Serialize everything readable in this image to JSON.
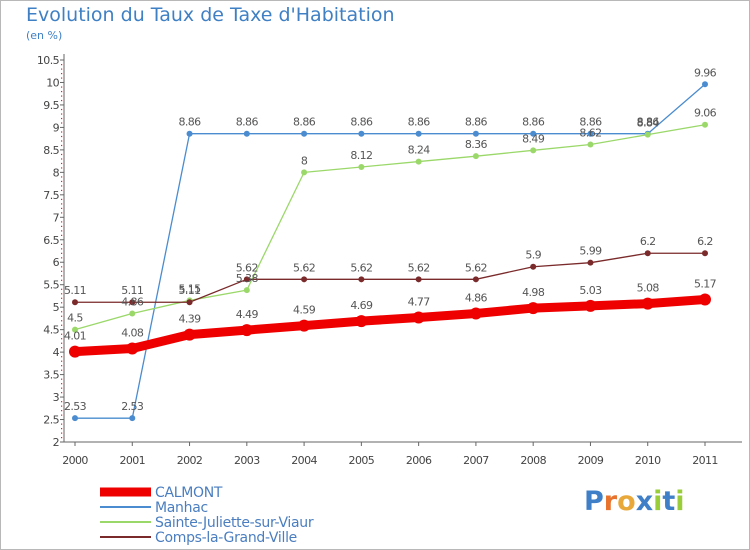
{
  "title": "Evolution du Taux de Taxe d'Habitation",
  "unit_label": "(en %)",
  "logo": {
    "text": "Proxiti",
    "colors": [
      "#3f7fc7",
      "#e8732c",
      "#e8a83a",
      "#3f7fc7",
      "#9acd3a",
      "#3f7fc7",
      "#9acd3a"
    ]
  },
  "chart_data": {
    "type": "line",
    "title": "Evolution du Taux de Taxe d'Habitation",
    "ylabel": "(en %)",
    "xlabel": "",
    "categories": [
      "2000",
      "2001",
      "2002",
      "2003",
      "2004",
      "2005",
      "2006",
      "2007",
      "2008",
      "2009",
      "2010",
      "2011"
    ],
    "ylim": [
      2,
      10.5
    ],
    "yticks": [
      "2",
      "2.5",
      "3",
      "3.5",
      "4",
      "4.5",
      "5",
      "5.5",
      "6",
      "6.5",
      "7",
      "7.5",
      "8",
      "8.5",
      "9",
      "9.5",
      "10",
      "10.5"
    ],
    "grid": false,
    "legend_position": "bottom-left",
    "series": [
      {
        "name": "CALMONT",
        "color": "#ee0000",
        "emphasis": true,
        "values": [
          4.01,
          4.08,
          4.39,
          4.49,
          4.59,
          4.69,
          4.77,
          4.86,
          4.98,
          5.03,
          5.08,
          5.17
        ],
        "labels": [
          "4.01",
          "4.08",
          "4.39",
          "4.49",
          "4.59",
          "4.69",
          "4.77",
          "4.86",
          "4.98",
          "5.03",
          "5.08",
          "5.17"
        ]
      },
      {
        "name": "Manhac",
        "color": "#4a8ccf",
        "emphasis": false,
        "values": [
          2.53,
          2.53,
          8.86,
          8.86,
          8.86,
          8.86,
          8.86,
          8.86,
          8.86,
          8.86,
          8.86,
          9.96
        ],
        "labels": [
          "2.53",
          "2.53",
          "8.86",
          "8.86",
          "8.86",
          "8.86",
          "8.86",
          "8.86",
          "8.86",
          "8.86",
          "8.86",
          "9.96"
        ]
      },
      {
        "name": "Sainte-Juliette-sur-Viaur",
        "color": "#9bd86a",
        "emphasis": false,
        "values": [
          4.5,
          4.86,
          5.15,
          5.38,
          8,
          8.12,
          8.24,
          8.36,
          8.49,
          8.62,
          8.84,
          9.06
        ],
        "labels": [
          "4.5",
          "4.86",
          "5.15",
          "5.38",
          "8",
          "8.12",
          "8.24",
          "8.36",
          "8.49",
          "8.62",
          "8.84",
          "9.06"
        ]
      },
      {
        "name": "Comps-la-Grand-Ville",
        "color": "#7a2a2a",
        "emphasis": false,
        "values": [
          5.11,
          5.11,
          5.11,
          5.62,
          5.62,
          5.62,
          5.62,
          5.62,
          5.9,
          5.99,
          6.2,
          6.2
        ],
        "labels": [
          "5.11",
          "5.11",
          "5.11",
          "5.62",
          "5.62",
          "5.62",
          "5.62",
          "5.62",
          "5.9",
          "5.99",
          "6.2",
          "6.2"
        ]
      }
    ]
  }
}
